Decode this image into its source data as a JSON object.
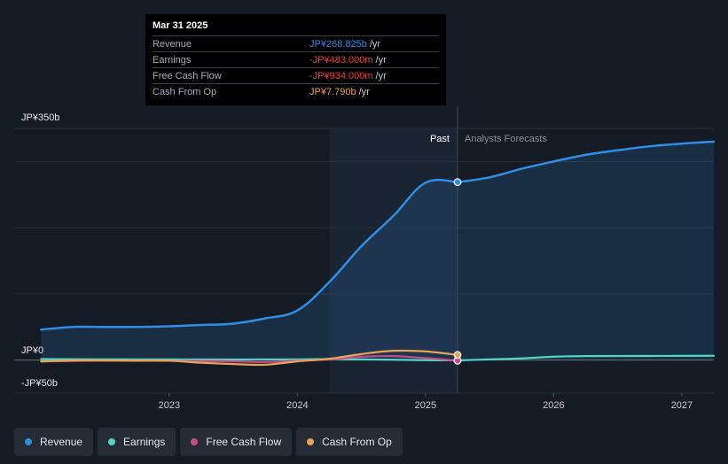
{
  "chart_data": {
    "type": "line",
    "title": "",
    "y_axis": {
      "top_label": "JP¥350b",
      "zero_label": "JP¥0",
      "bottom_label": "-JP¥50b",
      "ylim": [
        -50,
        350
      ]
    },
    "x_ticks": [
      {
        "label": "2023",
        "x": 2023.0
      },
      {
        "label": "2024",
        "x": 2024.0
      },
      {
        "label": "2025",
        "x": 2025.0
      },
      {
        "label": "2026",
        "x": 2026.0
      },
      {
        "label": "2027",
        "x": 2027.0
      }
    ],
    "xlim": [
      2021.79,
      2027.25
    ],
    "past_start": 2024.25,
    "divider_x": 2025.25,
    "past_label": "Past",
    "forecast_label": "Analysts Forecasts",
    "series": [
      {
        "name": "Revenue",
        "color": "#2f8fe6",
        "points": [
          [
            2022.0,
            46
          ],
          [
            2022.25,
            50
          ],
          [
            2022.5,
            50
          ],
          [
            2022.75,
            50
          ],
          [
            2023.0,
            51
          ],
          [
            2023.25,
            53
          ],
          [
            2023.5,
            55
          ],
          [
            2023.75,
            63
          ],
          [
            2024.0,
            75
          ],
          [
            2024.25,
            118
          ],
          [
            2024.5,
            172
          ],
          [
            2024.75,
            218
          ],
          [
            2025.0,
            268
          ],
          [
            2025.25,
            268.8
          ]
        ],
        "forecast": [
          [
            2025.25,
            268.8
          ],
          [
            2025.5,
            276
          ],
          [
            2025.75,
            289
          ],
          [
            2026.0,
            300
          ],
          [
            2026.25,
            310
          ],
          [
            2026.5,
            317
          ],
          [
            2026.75,
            323
          ],
          [
            2027.0,
            327
          ],
          [
            2027.25,
            330
          ]
        ]
      },
      {
        "name": "Earnings",
        "color": "#4fd6c4",
        "points": [
          [
            2022.0,
            1.5
          ],
          [
            2022.5,
            1.2
          ],
          [
            2023.0,
            1
          ],
          [
            2023.5,
            0.8
          ],
          [
            2024.0,
            1
          ],
          [
            2024.25,
            1.5
          ],
          [
            2024.5,
            1
          ],
          [
            2024.75,
            0.5
          ],
          [
            2025.0,
            -0.2
          ],
          [
            2025.25,
            -0.48
          ]
        ],
        "forecast": [
          [
            2025.25,
            -0.48
          ],
          [
            2025.5,
            1
          ],
          [
            2025.75,
            2.5
          ],
          [
            2026.0,
            5
          ],
          [
            2026.25,
            6
          ],
          [
            2026.75,
            6.2
          ],
          [
            2027.25,
            6.5
          ]
        ]
      },
      {
        "name": "Free Cash Flow",
        "color": "#c94a86",
        "points": [
          [
            2022.0,
            -2
          ],
          [
            2022.5,
            -1
          ],
          [
            2023.0,
            -1
          ],
          [
            2023.5,
            -2
          ],
          [
            2023.75,
            -3
          ],
          [
            2024.0,
            -1
          ],
          [
            2024.25,
            1
          ],
          [
            2024.5,
            5
          ],
          [
            2024.75,
            6
          ],
          [
            2025.0,
            3
          ],
          [
            2025.25,
            -0.93
          ]
        ],
        "forecast": []
      },
      {
        "name": "Cash From Op",
        "color": "#e8a456",
        "points": [
          [
            2022.0,
            -2
          ],
          [
            2022.25,
            -0.5
          ],
          [
            2022.5,
            -0.5
          ],
          [
            2022.75,
            -1
          ],
          [
            2023.0,
            -1
          ],
          [
            2023.25,
            -4
          ],
          [
            2023.5,
            -6
          ],
          [
            2023.75,
            -7
          ],
          [
            2024.0,
            -2
          ],
          [
            2024.25,
            2
          ],
          [
            2024.5,
            9
          ],
          [
            2024.75,
            14
          ],
          [
            2025.0,
            13
          ],
          [
            2025.25,
            7.79
          ]
        ],
        "forecast": []
      }
    ],
    "highlight_x": 2025.25
  },
  "tooltip": {
    "date": "Mar 31 2025",
    "unit": "/yr",
    "rows": [
      {
        "label": "Revenue",
        "value": "JP¥268.825b",
        "color": "#2f8fe6"
      },
      {
        "label": "Earnings",
        "value": "-JP¥483.000m",
        "color": "#e8414a"
      },
      {
        "label": "Free Cash Flow",
        "value": "-JP¥934.000m",
        "color": "#e8414a"
      },
      {
        "label": "Cash From Op",
        "value": "JP¥7.790b",
        "color": "#e8a456"
      }
    ]
  },
  "legend": [
    {
      "label": "Revenue",
      "color": "#2f8fe6"
    },
    {
      "label": "Earnings",
      "color": "#4fd6c4"
    },
    {
      "label": "Free Cash Flow",
      "color": "#c94a86"
    },
    {
      "label": "Cash From Op",
      "color": "#e8a456"
    }
  ]
}
